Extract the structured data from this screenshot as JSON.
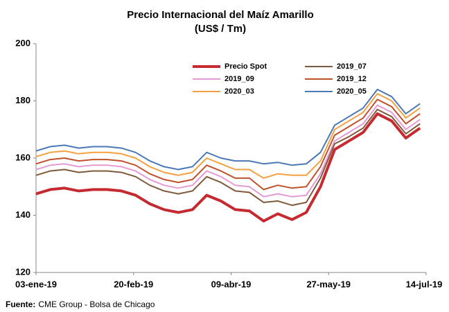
{
  "chart_data": {
    "type": "line",
    "title": "Precio Internacional del Maíz Amarillo",
    "subtitle": "(US$ / Tm)",
    "source": {
      "label": "Fuente:",
      "text": "CME Group - Bolsa de Chicago"
    },
    "x": [
      "2019-01-03",
      "2019-01-10",
      "2019-01-17",
      "2019-01-24",
      "2019-01-31",
      "2019-02-07",
      "2019-02-14",
      "2019-02-21",
      "2019-02-28",
      "2019-03-07",
      "2019-03-14",
      "2019-03-21",
      "2019-03-28",
      "2019-04-04",
      "2019-04-11",
      "2019-04-18",
      "2019-04-25",
      "2019-05-02",
      "2019-05-09",
      "2019-05-16",
      "2019-05-23",
      "2019-05-30",
      "2019-06-06",
      "2019-06-13",
      "2019-06-20",
      "2019-06-27",
      "2019-07-04",
      "2019-07-11"
    ],
    "xlim": [
      "2019-01-03",
      "2019-07-14"
    ],
    "xticks": [
      {
        "value": "2019-01-03",
        "label": "03-ene-19"
      },
      {
        "value": "2019-02-20",
        "label": "20-feb-19"
      },
      {
        "value": "2019-04-09",
        "label": "09-abr-19"
      },
      {
        "value": "2019-05-27",
        "label": "27-may-19"
      },
      {
        "value": "2019-07-14",
        "label": "14-jul-19"
      }
    ],
    "ylim": [
      120,
      200
    ],
    "yticks": [
      120,
      140,
      160,
      180,
      200
    ],
    "grid": false,
    "legend": "top-right",
    "series": [
      {
        "name": "Precio Spot",
        "color": "#c42a30",
        "values": [
          147.5,
          149,
          149.5,
          148.5,
          149,
          149,
          148.5,
          147,
          144,
          142,
          141,
          142,
          147,
          145,
          142,
          141.5,
          138,
          140.5,
          138.5,
          141,
          150,
          163,
          166,
          169,
          175.5,
          173,
          167,
          170.5
        ]
      },
      {
        "name": "2019_07",
        "color": "#7d5a3a",
        "values": [
          154,
          155.5,
          156,
          155,
          155.5,
          155.5,
          155,
          153.5,
          150.5,
          148.5,
          147.5,
          148.5,
          153.5,
          151.5,
          148.5,
          148,
          144.5,
          145,
          143.5,
          144.5,
          153,
          165,
          167.5,
          170.5,
          177,
          174.5,
          168.5,
          172
        ]
      },
      {
        "name": "2019_09",
        "color": "#e59ad6",
        "values": [
          156,
          157.5,
          158,
          157,
          157.5,
          157.5,
          157,
          155.5,
          152.5,
          150.5,
          149.5,
          150.5,
          155.5,
          153.5,
          150.5,
          150,
          146.5,
          147.5,
          146.5,
          147,
          154.5,
          166,
          169,
          172,
          178.5,
          176,
          170,
          173.5
        ]
      },
      {
        "name": "2019_12",
        "color": "#c0502a",
        "values": [
          158,
          159.5,
          160,
          159,
          159.5,
          159.5,
          159,
          157.5,
          154.5,
          152.5,
          151.5,
          152.5,
          157.5,
          155.5,
          153,
          153,
          149,
          150.5,
          149.5,
          150,
          157,
          168,
          171,
          174,
          180.5,
          178,
          172,
          175.5
        ]
      },
      {
        "name": "2020_03",
        "color": "#f4a040",
        "values": [
          160.5,
          162,
          162.5,
          161.5,
          162,
          162,
          161.5,
          160,
          157,
          155,
          154,
          155,
          160,
          158,
          156,
          156,
          153,
          154.5,
          154,
          154,
          159,
          170,
          173,
          176,
          182.5,
          180,
          174,
          177.5
        ]
      },
      {
        "name": "2020_05",
        "color": "#4a78b6",
        "values": [
          162.5,
          164,
          164.5,
          163.5,
          164,
          164,
          163.5,
          162,
          159,
          157,
          156,
          157,
          162,
          160,
          159,
          159,
          158,
          158.5,
          157.5,
          158,
          162,
          171.5,
          174.5,
          177.5,
          184,
          181.5,
          175.5,
          179
        ]
      }
    ]
  }
}
